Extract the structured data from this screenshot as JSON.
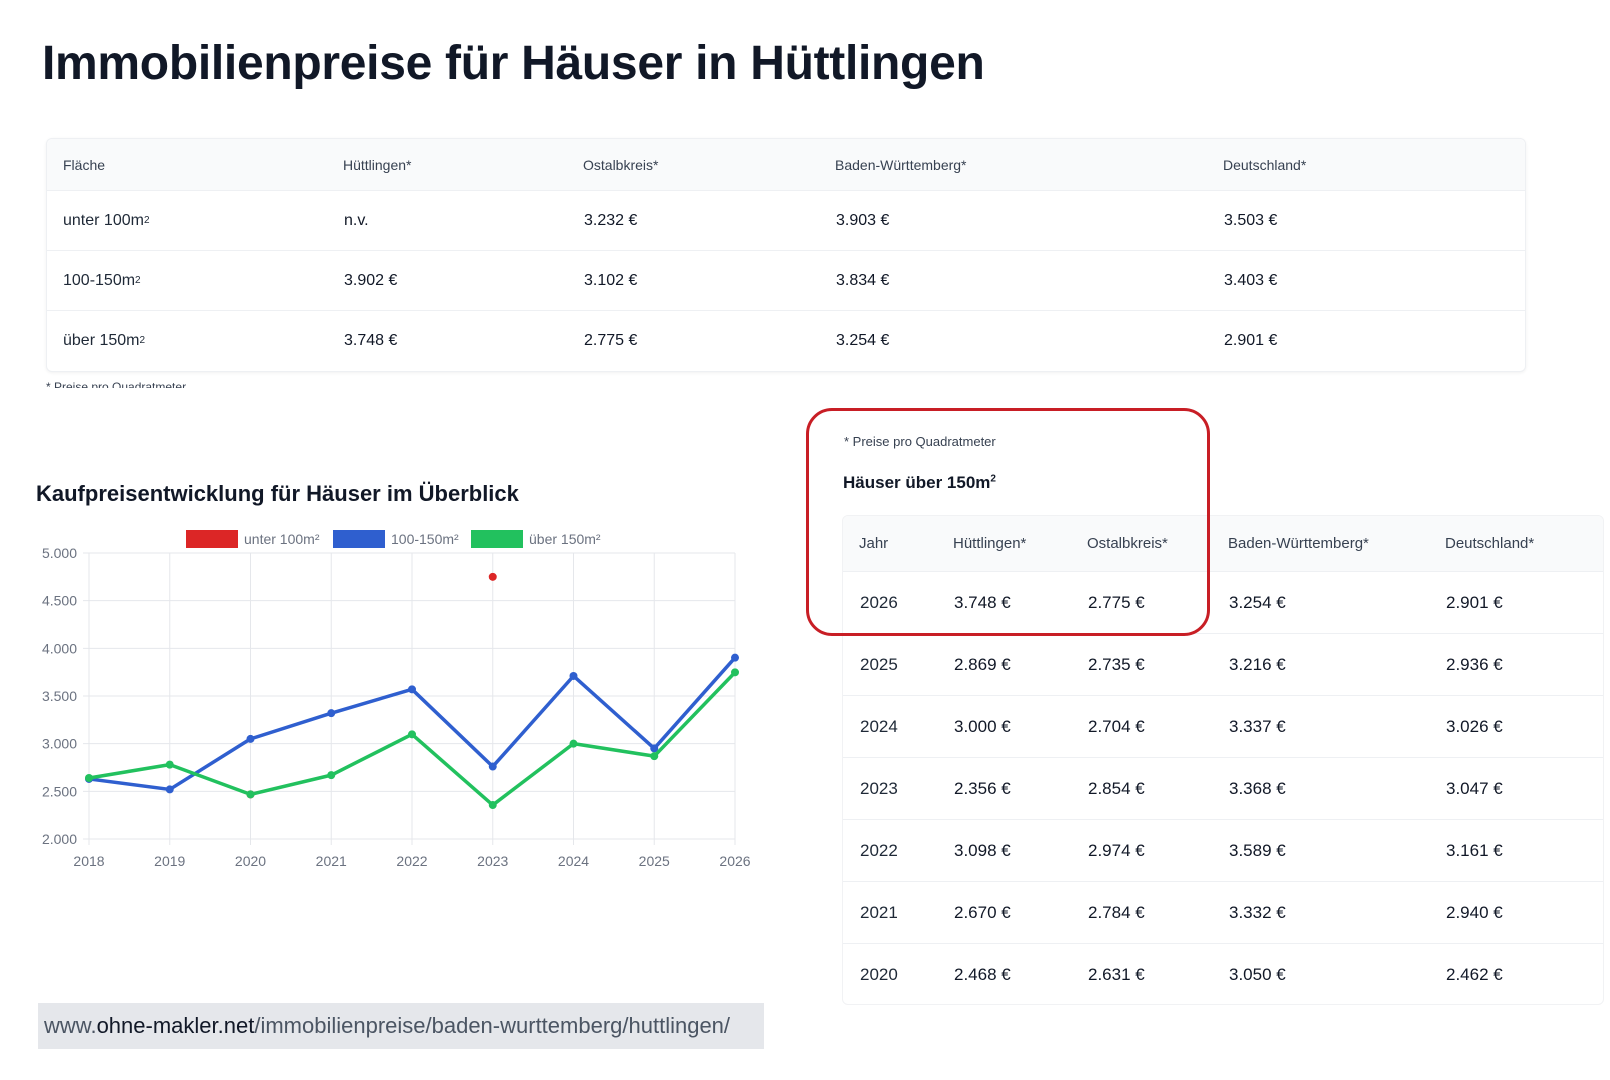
{
  "page": {
    "title": "Immobilienpreise für Häuser in Hüttlingen"
  },
  "top_table": {
    "headers": [
      "Fläche",
      "Hüttlingen*",
      "Ostalbkreis*",
      "Baden-Württemberg*",
      "Deutschland*"
    ],
    "rows": [
      {
        "label": "unter 100m",
        "sup": "2",
        "values": [
          "n.v.",
          "3.232 €",
          "3.903 €",
          "3.503 €"
        ]
      },
      {
        "label": "100-150m",
        "sup": "2",
        "values": [
          "3.902 €",
          "3.102 €",
          "3.834 €",
          "3.403 €"
        ]
      },
      {
        "label": "über 150m",
        "sup": "2",
        "values": [
          "3.748 €",
          "2.775 €",
          "3.254 €",
          "2.901 €"
        ]
      }
    ],
    "footnote": "* Preise pro Quadratmeter"
  },
  "chart_section": {
    "title": "Kaufpreisentwicklung für Häuser im Überblick"
  },
  "chart_data": {
    "type": "line",
    "title": "",
    "xlabel": "",
    "ylabel": "",
    "x": [
      "2018",
      "2019",
      "2020",
      "2021",
      "2022",
      "2023",
      "2024",
      "2025",
      "2026"
    ],
    "ylim": [
      2000,
      5000
    ],
    "y_ticks": [
      "5.000",
      "4.500",
      "4.000",
      "3.500",
      "3.000",
      "2.500",
      "2.000"
    ],
    "grid": true,
    "legend_position": "top",
    "series": [
      {
        "name": "unter 100m²",
        "color": "#dc2626",
        "values": [
          null,
          null,
          2468,
          null,
          null,
          4750,
          null,
          null,
          null
        ]
      },
      {
        "name": "100-150m²",
        "color": "#2f5fcf",
        "values": [
          2630,
          2520,
          3050,
          3320,
          3570,
          2760,
          3710,
          2950,
          3902
        ]
      },
      {
        "name": "über 150m²",
        "color": "#22c15e",
        "values": [
          2640,
          2780,
          2468,
          2670,
          3098,
          2356,
          3000,
          2869,
          3748
        ]
      }
    ]
  },
  "highlight": {
    "footnote": "* Preise pro Quadratmeter",
    "subtitle": "Häuser über 150m",
    "subtitle_sup": "2"
  },
  "right_table": {
    "headers": [
      "Jahr",
      "Hüttlingen*",
      "Ostalbkreis*",
      "Baden-Württemberg*",
      "Deutschland*"
    ],
    "rows": [
      [
        "2026",
        "3.748 €",
        "2.775 €",
        "3.254 €",
        "2.901 €"
      ],
      [
        "2025",
        "2.869 €",
        "2.735 €",
        "3.216 €",
        "2.936 €"
      ],
      [
        "2024",
        "3.000 €",
        "2.704 €",
        "3.337 €",
        "3.026 €"
      ],
      [
        "2023",
        "2.356 €",
        "2.854 €",
        "3.368 €",
        "3.047 €"
      ],
      [
        "2022",
        "3.098 €",
        "2.974 €",
        "3.589 €",
        "3.161 €"
      ],
      [
        "2021",
        "2.670 €",
        "2.784 €",
        "3.332 €",
        "2.940 €"
      ],
      [
        "2020",
        "2.468 €",
        "2.631 €",
        "3.050 €",
        "2.462 €"
      ]
    ]
  },
  "url": {
    "prefix": "www.",
    "domain": "ohne-makler.net",
    "path": "/immobilienpreise/baden-wurttemberg/huttlingen/"
  }
}
